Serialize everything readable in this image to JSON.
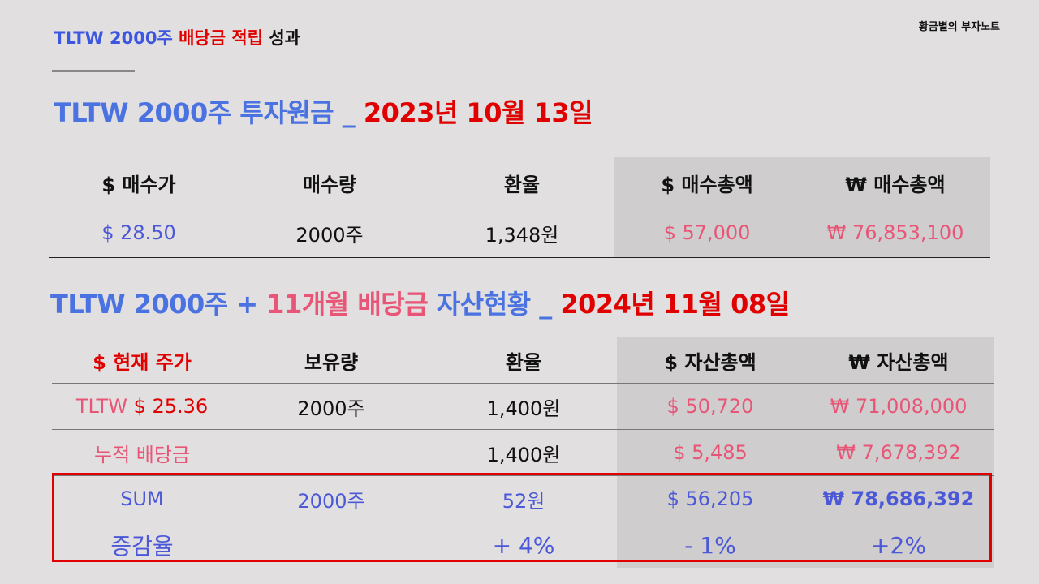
{
  "brand": "황금별의 부자노트",
  "topline": {
    "part1": "TLTW 2000주",
    "part2": "배당금 적립",
    "part3": "성과"
  },
  "section1": {
    "heading": {
      "part1": "TLTW 2000주 투자원금 _ ",
      "part2": "2023년 10월 13일"
    },
    "headers": [
      "$ 매수가",
      "매수량",
      "환율",
      "$ 매수총액",
      "₩ 매수총액"
    ],
    "row": [
      "$ 28.50",
      "2000주",
      "1,348원",
      "$ 57,000",
      "₩ 76,853,100"
    ]
  },
  "section2": {
    "heading": {
      "part1": "TLTW 2000주 + ",
      "part2": "11개월 배당금",
      "part3": " 자산현황 _ ",
      "part4": "2024년 11월 08일"
    },
    "headers": [
      "$ 현재 주가",
      "보유량",
      "환율",
      "$ 자산총액",
      "₩ 자산총액"
    ],
    "rows": [
      {
        "label_prefix": "TLTW ",
        "label": "$ 25.36",
        "qty": "2000주",
        "fx": "1,400원",
        "usd": "$ 50,720",
        "krw": "₩ 71,008,000"
      },
      {
        "label_prefix": "",
        "label": "누적 배당금",
        "qty": "",
        "fx": "1,400원",
        "usd": "$ 5,485",
        "krw": "₩ 7,678,392"
      },
      {
        "label_prefix": "",
        "label": "SUM",
        "qty": "2000주",
        "fx": "52원",
        "usd": "$ 56,205",
        "krw": "₩ 78,686,392"
      },
      {
        "label_prefix": "",
        "label": "증감율",
        "qty": "",
        "fx": "+ 4%",
        "usd": "- 1%",
        "krw": "+2%"
      }
    ]
  },
  "colors": {
    "blue": "#4a72e0",
    "red": "#e00000",
    "pink": "#e85577",
    "indigo": "#4b58d8",
    "background": "#e1dfdf",
    "shade": "#cfcdcd"
  }
}
